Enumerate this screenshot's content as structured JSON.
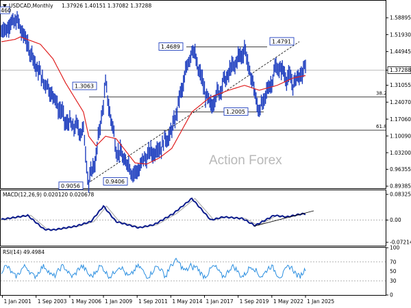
{
  "header": {
    "symbol": "USDCAD,Monthly",
    "ohlc": "1.37926 1.40151 1.37082 1.37288"
  },
  "watermark": "Action Forex",
  "colors": {
    "price": "#1f3fbf",
    "ma": "#e02020",
    "macd": "#0a1a8c",
    "signal": "#a0a0a0",
    "rsi": "#2a8ee0",
    "current_price_box": "#ffffff"
  },
  "chart_data": [
    {
      "type": "line",
      "panel": "price",
      "title": "USDCAD,Monthly",
      "x": [
        "2000-12",
        "2002-01",
        "2002-06",
        "2004-01",
        "2005-01",
        "2006-01",
        "2007-06",
        "2007-11",
        "2008-06",
        "2009-03",
        "2010-01",
        "2011-07",
        "2012-06",
        "2013-06",
        "2014-06",
        "2016-01",
        "2017-06",
        "2018-12",
        "2020-03",
        "2021-05",
        "2022-10",
        "2024-01",
        "2024-12"
      ],
      "series": [
        {
          "name": "",
          "values": [
            1.53,
            1.58,
            1.55,
            1.35,
            1.27,
            1.16,
            1.12,
            0.9056,
            1.02,
            1.3063,
            1.05,
            0.9406,
            1.02,
            1.05,
            1.12,
            1.4689,
            1.22,
            1.36,
            1.46,
            1.2005,
            1.39,
            1.32,
            1.37288
          ]
        }
      ],
      "ma_values": [
        1.49,
        1.5,
        1.51,
        1.48,
        1.42,
        1.32,
        1.2,
        1.1,
        1.06,
        1.1,
        1.09,
        0.99,
        0.985,
        1.01,
        1.05,
        1.2,
        1.26,
        1.29,
        1.31,
        1.29,
        1.31,
        1.34,
        1.35
      ],
      "ylim": [
        0.87,
        1.62
      ],
      "y_ticks": [
        "1.58895",
        "1.51930",
        "1.44945",
        "1.37288",
        "1.31055",
        "1.24070",
        "1.17060",
        "1.10090",
        "1.03200",
        "0.96355",
        "0.89385"
      ],
      "current": "1.37288",
      "labels": [
        "1.4689",
        "1.4791",
        "1.3063",
        "1.2005",
        "0.9056",
        "0.9406"
      ],
      "label_values": [
        1.4689,
        1.4791,
        1.3063,
        1.2005,
        0.9056,
        0.9406
      ],
      "fib_38": "38.2",
      "fib_61": "61.8",
      "fib_values": [
        1.2619,
        1.1253
      ],
      "left_edge_label": "460"
    },
    {
      "type": "line",
      "panel": "macd",
      "title": "MACD(12,26,9) 0.020120 0.020678",
      "y_ticks": [
        "0.083255",
        "0.00",
        "-0.072148"
      ],
      "ylim": [
        -0.085,
        0.095
      ]
    },
    {
      "type": "line",
      "panel": "rsi",
      "title": "RSI(14) 49.4984",
      "y_ticks": [
        "100",
        "70",
        "50",
        "30",
        "0"
      ],
      "ylim": [
        0,
        100
      ]
    }
  ],
  "x_axis": {
    "ticks": [
      "1 Jan 2001",
      "1 Sep 2003",
      "1 May 2006",
      "1 Jan 2009",
      "1 Sep 2011",
      "1 May 2014",
      "1 Jan 2017",
      "1 Sep 2019",
      "1 May 2022",
      "1 Jan 2025"
    ]
  }
}
